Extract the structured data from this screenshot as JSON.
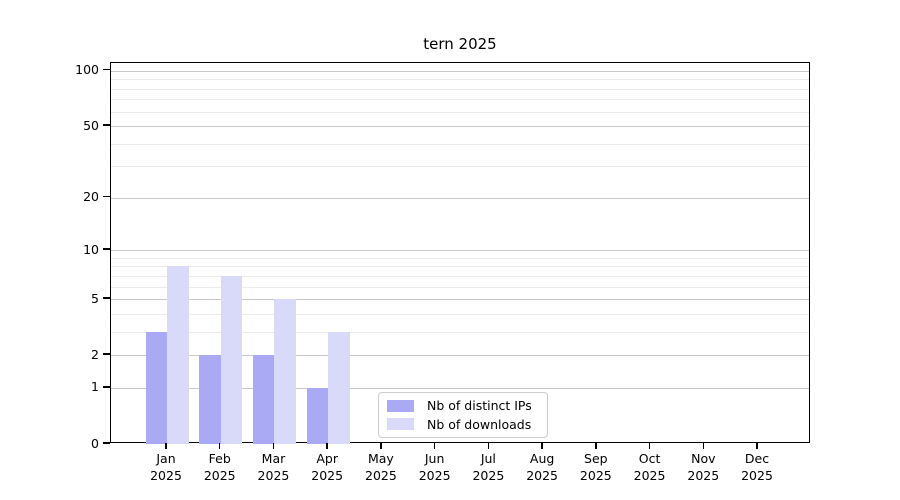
{
  "title": "tern 2025",
  "chart_data": {
    "type": "bar",
    "title": "tern 2025",
    "categories": [
      "Jan",
      "Feb",
      "Mar",
      "Apr",
      "May",
      "Jun",
      "Jul",
      "Aug",
      "Sep",
      "Oct",
      "Nov",
      "Dec"
    ],
    "category_year": "2025",
    "series": [
      {
        "name": "Nb of distinct IPs",
        "color": "#a9a9f4",
        "values": [
          3,
          2,
          2,
          1,
          0,
          0,
          0,
          0,
          0,
          0,
          0,
          0
        ]
      },
      {
        "name": "Nb of downloads",
        "color": "#d9d9f9",
        "values": [
          8,
          7,
          5,
          3,
          0,
          0,
          0,
          0,
          0,
          0,
          0,
          0
        ]
      }
    ],
    "yscale": "log1p",
    "ylim": [
      0,
      110
    ],
    "yticks": [
      0,
      1,
      2,
      5,
      10,
      20,
      50,
      100
    ],
    "yticks_minor": [
      3,
      4,
      6,
      7,
      8,
      9,
      30,
      40,
      60,
      70,
      80,
      90
    ],
    "grid": true,
    "legend_position": "lower center",
    "colors": {
      "grid_major": "#c9c9c9",
      "grid_minor": "#ebebeb",
      "spine": "#000000",
      "text": "#000000",
      "background": "#ffffff"
    }
  }
}
